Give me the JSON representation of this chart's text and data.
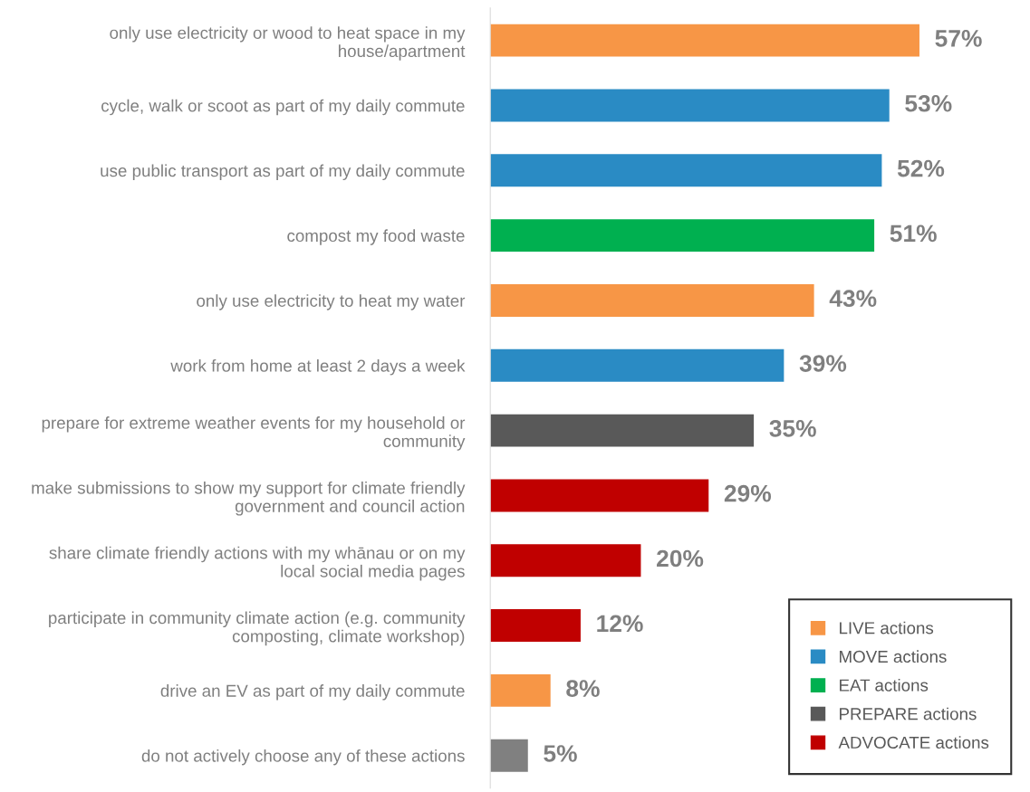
{
  "chart_data": {
    "type": "bar",
    "orientation": "horizontal",
    "relative": false,
    "categories": [
      "only use electricity or wood to heat space in my house/apartment",
      "cycle, walk or scoot as part of my daily commute",
      "use public transport as part of my daily commute",
      "compost my food waste",
      "only use electricity to heat my water",
      "work from home at least 2 days a week",
      "prepare for extreme weather events for my household or community",
      "make submissions to show my support for climate friendly government and council action",
      "share climate friendly actions with my whānau or on my local social media pages",
      "participate in community climate action (e.g. community composting, climate workshop)",
      "drive an EV as part of my daily commute",
      "do not actively choose any of these actions"
    ],
    "series": [
      {
        "name": "LIVE actions",
        "color": "#f79646",
        "values": [
          57,
          null,
          null,
          null,
          43,
          null,
          null,
          null,
          null,
          null,
          8,
          null
        ],
        "value_labels": [
          "57%",
          null,
          null,
          null,
          "43%",
          null,
          null,
          null,
          null,
          null,
          "8%",
          null
        ]
      },
      {
        "name": "MOVE actions",
        "color": "#2a8bc4",
        "values": [
          null,
          53,
          52,
          null,
          null,
          39,
          null,
          null,
          null,
          null,
          null,
          null
        ],
        "value_labels": [
          null,
          "53%",
          "52%",
          null,
          null,
          "39%",
          null,
          null,
          null,
          null,
          null,
          null
        ]
      },
      {
        "name": "EAT actions",
        "color": "#00b050",
        "values": [
          null,
          null,
          null,
          51,
          null,
          null,
          null,
          null,
          null,
          null,
          null,
          null
        ],
        "value_labels": [
          null,
          null,
          null,
          "51%",
          null,
          null,
          null,
          null,
          null,
          null,
          null,
          null
        ]
      },
      {
        "name": "PREPARE actions",
        "color": "#595959",
        "values": [
          null,
          null,
          null,
          null,
          null,
          null,
          35,
          null,
          null,
          null,
          null,
          null
        ],
        "value_labels": [
          null,
          null,
          null,
          null,
          null,
          null,
          "35%",
          null,
          null,
          null,
          null,
          null
        ]
      },
      {
        "name": "ADVOCATE actions",
        "color": "#c00000",
        "values": [
          null,
          null,
          null,
          null,
          null,
          null,
          null,
          29,
          20,
          12,
          null,
          null
        ],
        "value_labels": [
          null,
          null,
          null,
          null,
          null,
          null,
          null,
          "29%",
          "20%",
          "12%",
          null,
          null
        ]
      },
      {
        "color": "#808080",
        "values": [
          null,
          null,
          null,
          null,
          null,
          null,
          null,
          null,
          null,
          null,
          null,
          5
        ],
        "value_labels": [
          null,
          null,
          null,
          null,
          null,
          null,
          null,
          null,
          null,
          null,
          null,
          "5%"
        ]
      }
    ],
    "legend": "bottom right",
    "grid": false
  }
}
